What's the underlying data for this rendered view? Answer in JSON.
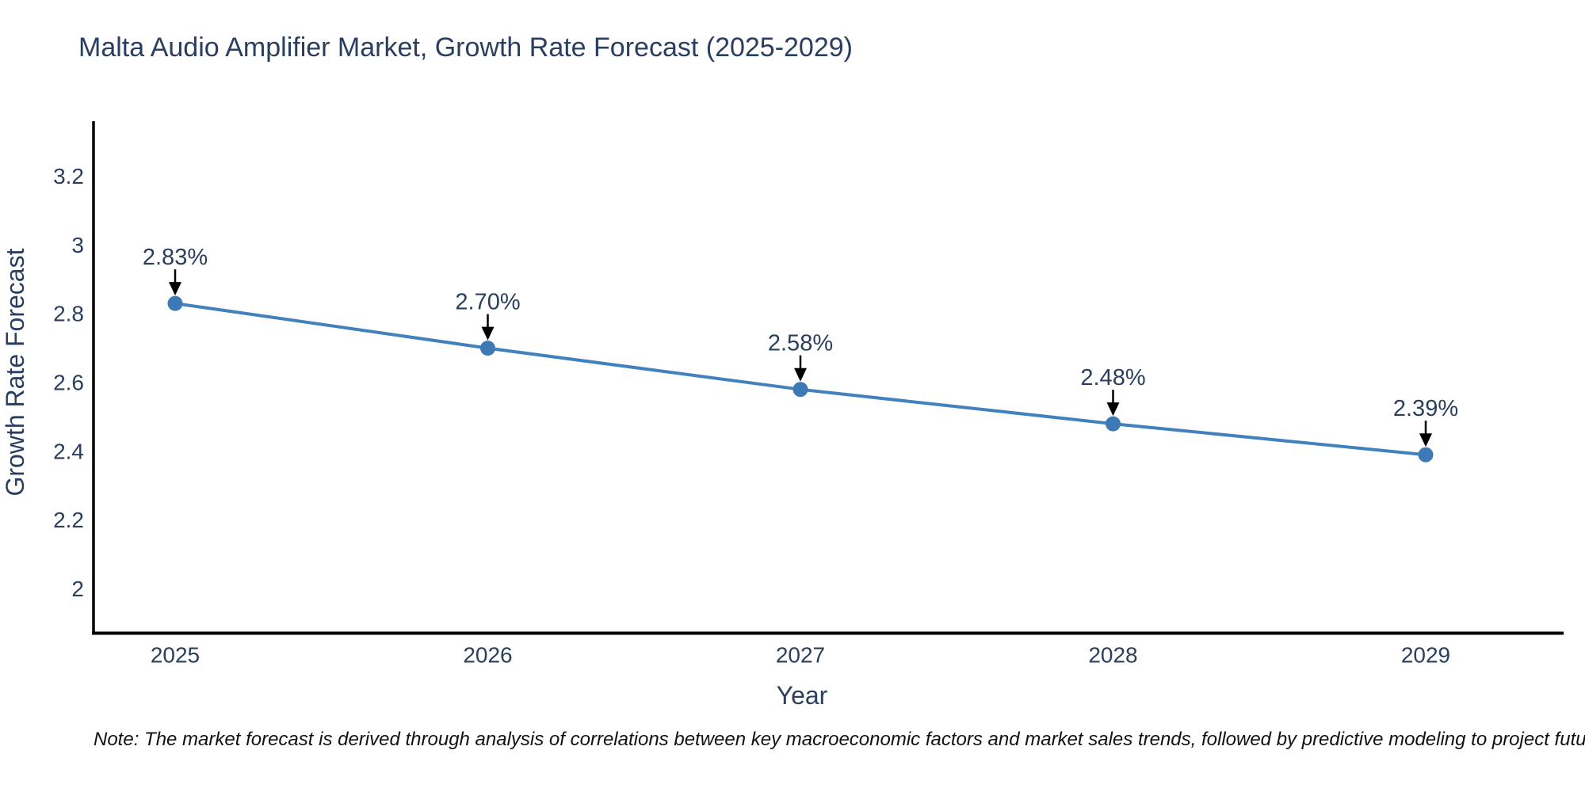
{
  "note": "Note: The market forecast is derived through analysis of correlations between key macroeconomic factors and market sales trends, followed by predictive modeling to project future sales",
  "chart_data": {
    "type": "line",
    "title": "Malta Audio Amplifier Market, Growth Rate Forecast (2025-2029)",
    "x": [
      "2025",
      "2026",
      "2027",
      "2028",
      "2029"
    ],
    "series": [
      {
        "name": "Growth Rate Forecast",
        "values": [
          2.83,
          2.7,
          2.58,
          2.48,
          2.39
        ]
      }
    ],
    "point_labels": [
      "2.83%",
      "2.70%",
      "2.58%",
      "2.48%",
      "2.39%"
    ],
    "xlabel": "Year",
    "ylabel": "Growth Rate Forecast",
    "ylim": [
      1.87,
      3.36
    ],
    "yticks": [
      2,
      2.2,
      2.4,
      2.6,
      2.8,
      3,
      3.2
    ],
    "grid": false,
    "legend": "none",
    "annotation_style": "value label above each point with black down-arrow",
    "colors": {
      "line": "#4181bd",
      "marker": "#3d79b5",
      "axis_line": "#000000",
      "text": "#2a3f5f",
      "annotation_arrow": "#000000",
      "note_text": "#111111",
      "background": "#ffffff"
    }
  }
}
